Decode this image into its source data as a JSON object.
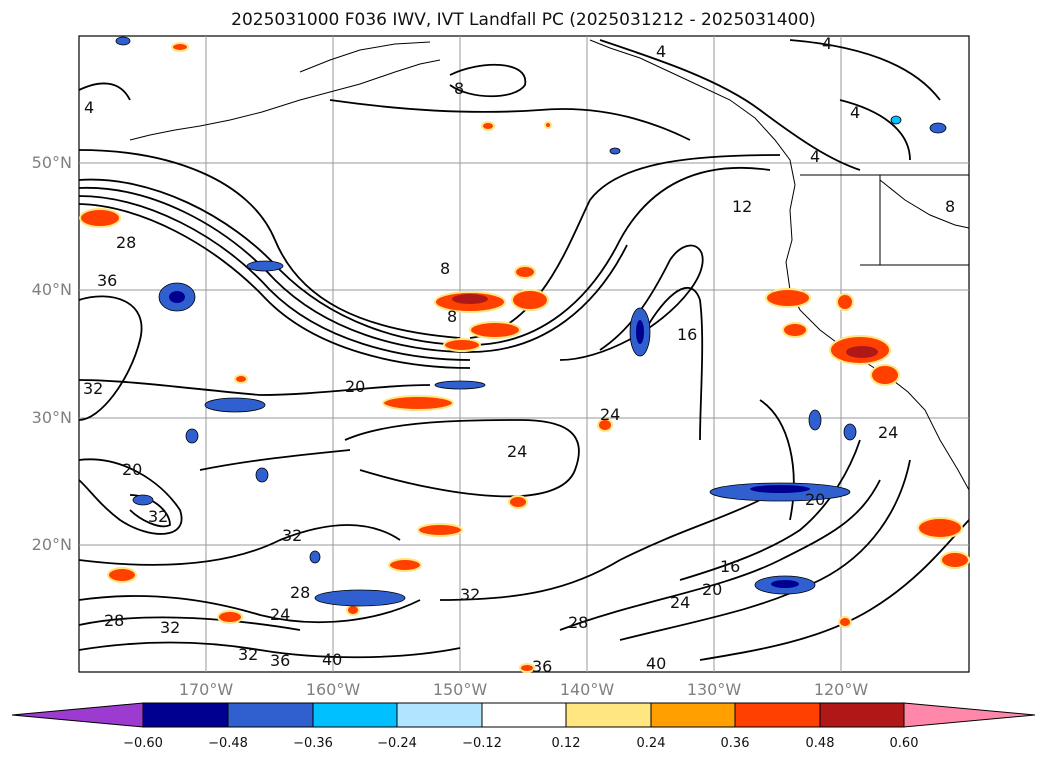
{
  "title": "2025031000 F036 IWV, IVT Landfall PC (2025031212 - 2025031400)",
  "lat_labels": [
    "50°N",
    "40°N",
    "30°N",
    "20°N"
  ],
  "lon_labels": [
    "170°W",
    "160°W",
    "150°W",
    "140°W",
    "130°W",
    "120°W"
  ],
  "contour_labels": [
    "4",
    "8",
    "12",
    "16",
    "20",
    "24",
    "28",
    "32",
    "36",
    "40"
  ],
  "colorbar": {
    "ticks": [
      "−0.60",
      "−0.48",
      "−0.36",
      "−0.24",
      "−0.12",
      "0.12",
      "0.24",
      "0.36",
      "0.48",
      "0.60"
    ],
    "colors": [
      "#9b3bd0",
      "#000090",
      "#3060d0",
      "#00c0ff",
      "#b0e4ff",
      "#ffffff",
      "#ffe680",
      "#ffa000",
      "#ff4000",
      "#b01818",
      "#ff88aa"
    ]
  }
}
